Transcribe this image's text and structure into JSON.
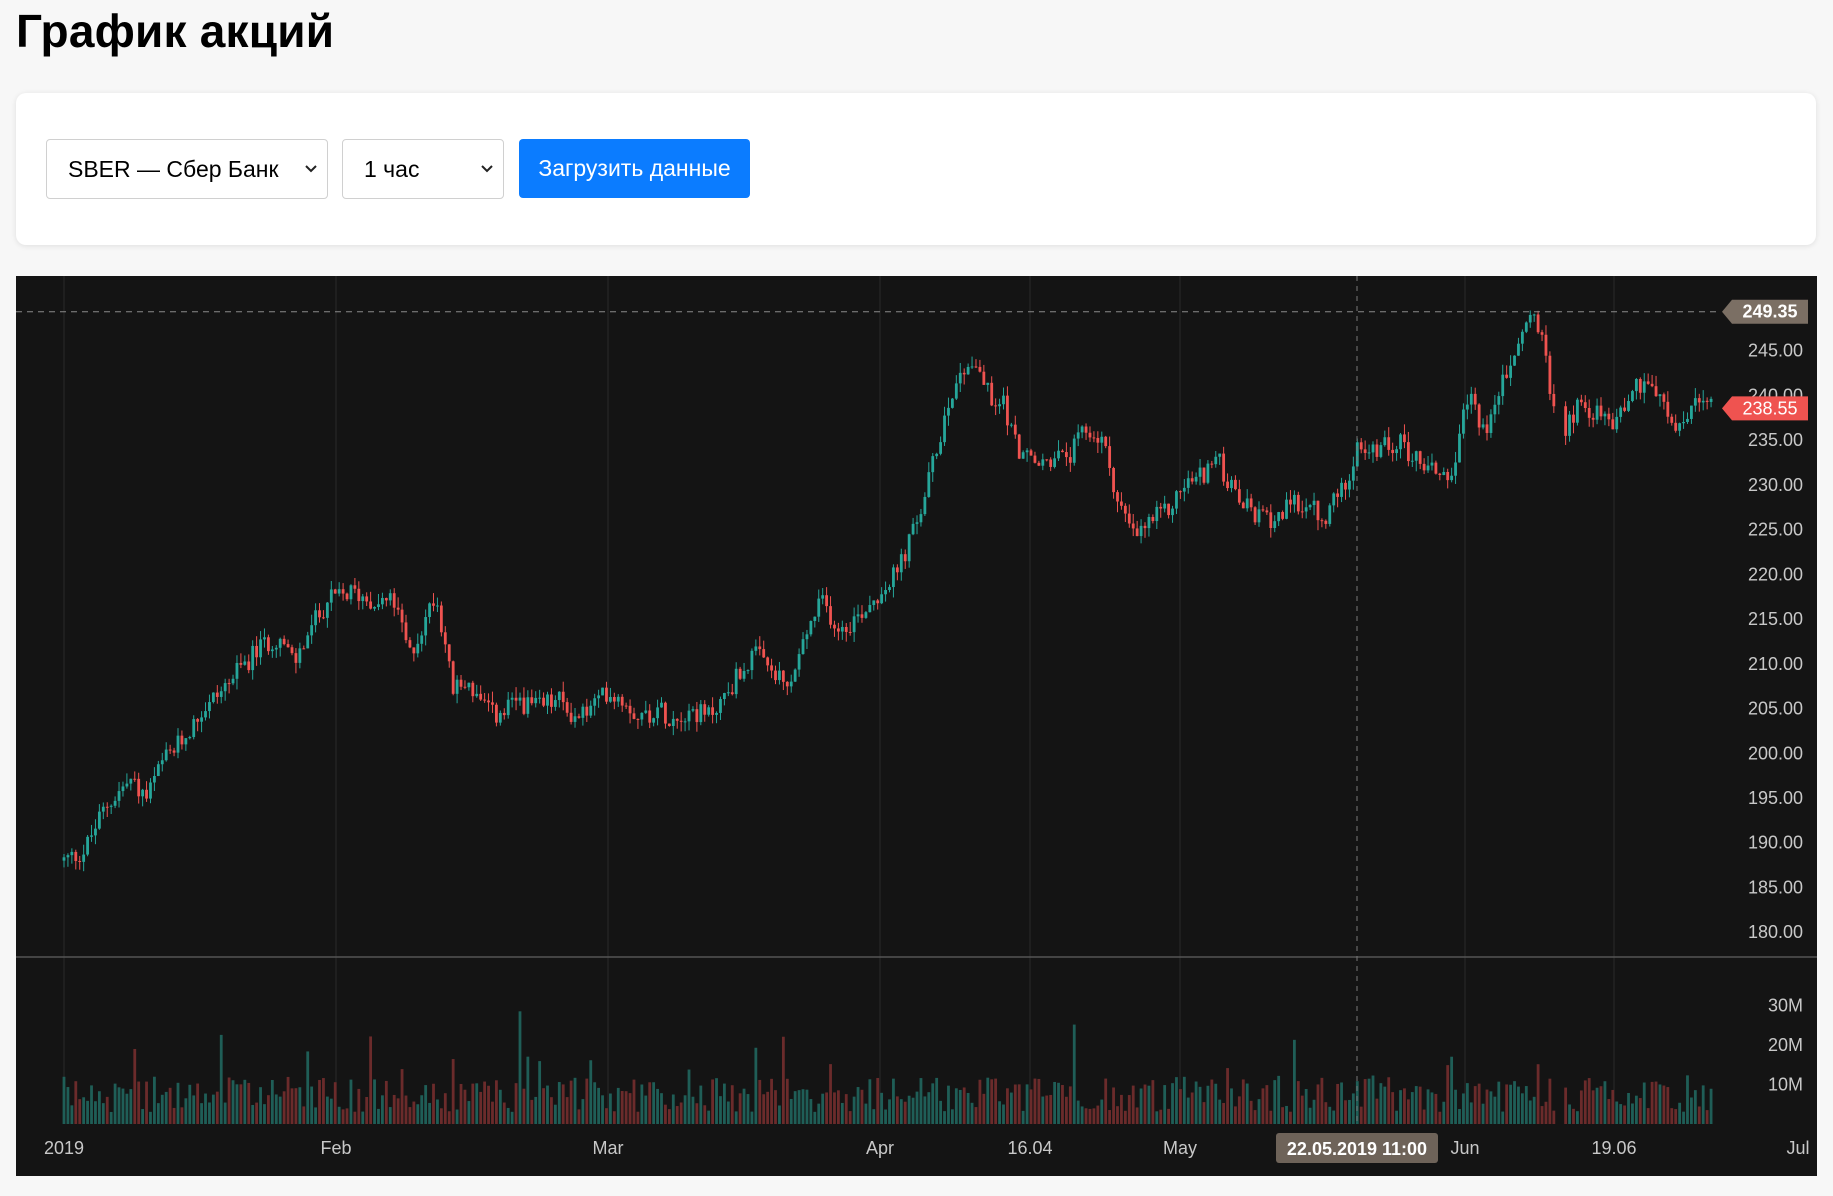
{
  "page": {
    "title": "График акций"
  },
  "controls": {
    "ticker_select": {
      "value": "SBER — Сбер Банк"
    },
    "interval_select": {
      "value": "1 час"
    },
    "load_button": {
      "label": "Загрузить данные"
    }
  },
  "chart_data": {
    "type": "candlestick",
    "symbol": "SBER",
    "interval": "1 час",
    "y_ticks": [
      "245.00",
      "240.00",
      "235.00",
      "230.00",
      "225.00",
      "220.00",
      "215.00",
      "210.00",
      "205.00",
      "200.00",
      "195.00",
      "190.00",
      "185.00",
      "180.00"
    ],
    "ylim": [
      176,
      252
    ],
    "volume_ticks": [
      "30M",
      "20M",
      "10M"
    ],
    "volume_ylim": [
      0,
      38000000
    ],
    "x_ticks": [
      "2019",
      "Feb",
      "Mar",
      "Apr",
      "16.04",
      "May",
      "Jun",
      "19.06",
      "Jul"
    ],
    "price_markers": {
      "high": {
        "label": "249.35",
        "value": 249.35
      },
      "last": {
        "label": "238.55",
        "value": 238.55
      }
    },
    "crosshair": {
      "label": "22.05.2019 11:00"
    },
    "close_path": [
      [
        0.0,
        188
      ],
      [
        0.012,
        189
      ],
      [
        0.025,
        194
      ],
      [
        0.04,
        197
      ],
      [
        0.05,
        195
      ],
      [
        0.06,
        199
      ],
      [
        0.07,
        201
      ],
      [
        0.085,
        205
      ],
      [
        0.1,
        208
      ],
      [
        0.11,
        210
      ],
      [
        0.12,
        212
      ],
      [
        0.13,
        213
      ],
      [
        0.14,
        210
      ],
      [
        0.15,
        214
      ],
      [
        0.16,
        217
      ],
      [
        0.175,
        218
      ],
      [
        0.19,
        217
      ],
      [
        0.2,
        217
      ],
      [
        0.205,
        214
      ],
      [
        0.21,
        211
      ],
      [
        0.215,
        213
      ],
      [
        0.22,
        215
      ],
      [
        0.225,
        218
      ],
      [
        0.23,
        214
      ],
      [
        0.236,
        207
      ],
      [
        0.245,
        208
      ],
      [
        0.255,
        205
      ],
      [
        0.265,
        204
      ],
      [
        0.275,
        206
      ],
      [
        0.285,
        205
      ],
      [
        0.3,
        206
      ],
      [
        0.31,
        204
      ],
      [
        0.32,
        205
      ],
      [
        0.33,
        207
      ],
      [
        0.34,
        206
      ],
      [
        0.35,
        204
      ],
      [
        0.36,
        205
      ],
      [
        0.37,
        204
      ],
      [
        0.38,
        205
      ],
      [
        0.39,
        204
      ],
      [
        0.4,
        206
      ],
      [
        0.41,
        209
      ],
      [
        0.42,
        211
      ],
      [
        0.43,
        209
      ],
      [
        0.44,
        207
      ],
      [
        0.45,
        213
      ],
      [
        0.46,
        217
      ],
      [
        0.47,
        214
      ],
      [
        0.48,
        215
      ],
      [
        0.49,
        217
      ],
      [
        0.5,
        219
      ],
      [
        0.505,
        220
      ],
      [
        0.51,
        222
      ],
      [
        0.52,
        227
      ],
      [
        0.53,
        234
      ],
      [
        0.535,
        238
      ],
      [
        0.54,
        241
      ],
      [
        0.55,
        244
      ],
      [
        0.555,
        243
      ],
      [
        0.56,
        241
      ],
      [
        0.565,
        238
      ],
      [
        0.57,
        240
      ],
      [
        0.575,
        236
      ],
      [
        0.58,
        234
      ],
      [
        0.59,
        232
      ],
      [
        0.6,
        233
      ],
      [
        0.61,
        233
      ],
      [
        0.62,
        236
      ],
      [
        0.63,
        235
      ],
      [
        0.635,
        232
      ],
      [
        0.64,
        228
      ],
      [
        0.65,
        224
      ],
      [
        0.66,
        226
      ],
      [
        0.67,
        227
      ],
      [
        0.68,
        230
      ],
      [
        0.69,
        231
      ],
      [
        0.7,
        233
      ],
      [
        0.71,
        229
      ],
      [
        0.72,
        227
      ],
      [
        0.73,
        226
      ],
      [
        0.74,
        227
      ],
      [
        0.75,
        228
      ],
      [
        0.76,
        227
      ],
      [
        0.765,
        225
      ],
      [
        0.77,
        228
      ],
      [
        0.78,
        231
      ],
      [
        0.785,
        235
      ],
      [
        0.79,
        233
      ],
      [
        0.8,
        234
      ],
      [
        0.81,
        235
      ],
      [
        0.82,
        233
      ],
      [
        0.83,
        232
      ],
      [
        0.84,
        231
      ],
      [
        0.845,
        232
      ],
      [
        0.85,
        238
      ],
      [
        0.855,
        240
      ],
      [
        0.86,
        237
      ],
      [
        0.865,
        236
      ],
      [
        0.87,
        240
      ],
      [
        0.88,
        244
      ],
      [
        0.885,
        247
      ],
      [
        0.89,
        249
      ],
      [
        0.895,
        248
      ],
      [
        0.905,
        238
      ],
      [
        0.91,
        236
      ],
      [
        0.92,
        239
      ],
      [
        0.93,
        238
      ],
      [
        0.94,
        237
      ],
      [
        0.95,
        240
      ],
      [
        0.96,
        242
      ],
      [
        0.965,
        241
      ],
      [
        0.97,
        239
      ],
      [
        0.975,
        237
      ],
      [
        0.98,
        236
      ],
      [
        0.99,
        239
      ],
      [
        1.0,
        238.55
      ]
    ]
  }
}
